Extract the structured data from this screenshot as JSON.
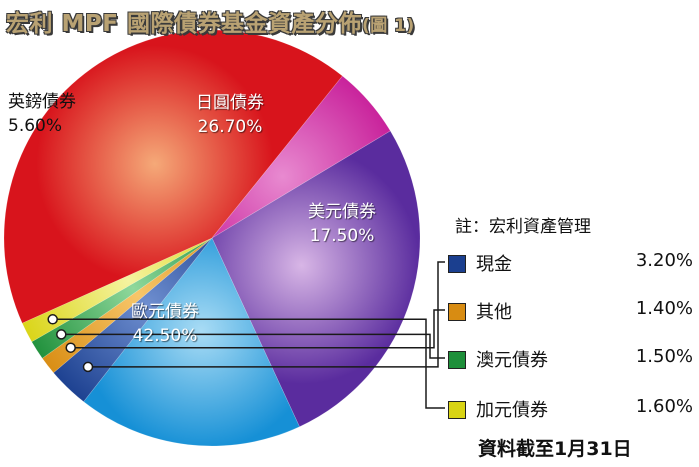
{
  "title": "宏利 MPF 國際債券基金資產分佈",
  "figure_label": "(圖 1)",
  "note": "註：宏利資產管理",
  "footnote": "資料截至1月31日",
  "chart_data": {
    "type": "pie",
    "title": "宏利 MPF 國際債券基金資產分佈",
    "slices": [
      {
        "name": "日圓債券",
        "value_label": "26.70%",
        "value": 26.7,
        "color": "#5a2c9e",
        "highlight": "#d8b6e6"
      },
      {
        "name": "美元債券",
        "value_label": "17.50%",
        "value": 17.5,
        "color": "#1690d6",
        "highlight": "#a9dcf5"
      },
      {
        "name": "現金",
        "value_label": "3.20%",
        "value": 3.2,
        "color": "#1b3f8f",
        "highlight": "#6f8fd0"
      },
      {
        "name": "其他",
        "value_label": "1.40%",
        "value": 1.4,
        "color": "#d88c12",
        "highlight": "#f7c66a"
      },
      {
        "name": "澳元債券",
        "value_label": "1.50%",
        "value": 1.5,
        "color": "#1e8f3a",
        "highlight": "#8fd89c"
      },
      {
        "name": "加元債券",
        "value_label": "1.60%",
        "value": 1.6,
        "color": "#d9d414",
        "highlight": "#f5f3a0"
      },
      {
        "name": "歐元債券",
        "value_label": "42.50%",
        "value": 42.5,
        "color": "#d8141c",
        "highlight": "#f5a978"
      },
      {
        "name": "英鎊債券",
        "value_label": "5.60%",
        "value": 5.6,
        "color": "#c8209a",
        "highlight": "#e88ad0"
      }
    ],
    "legend": [
      {
        "name": "現金",
        "value_label": "3.20%",
        "color": "#1b3f8f"
      },
      {
        "name": "其他",
        "value_label": "1.40%",
        "color": "#d88c12"
      },
      {
        "name": "澳元債券",
        "value_label": "1.50%",
        "color": "#1e8f3a"
      },
      {
        "name": "加元債券",
        "value_label": "1.60%",
        "color": "#d9d414"
      }
    ]
  }
}
